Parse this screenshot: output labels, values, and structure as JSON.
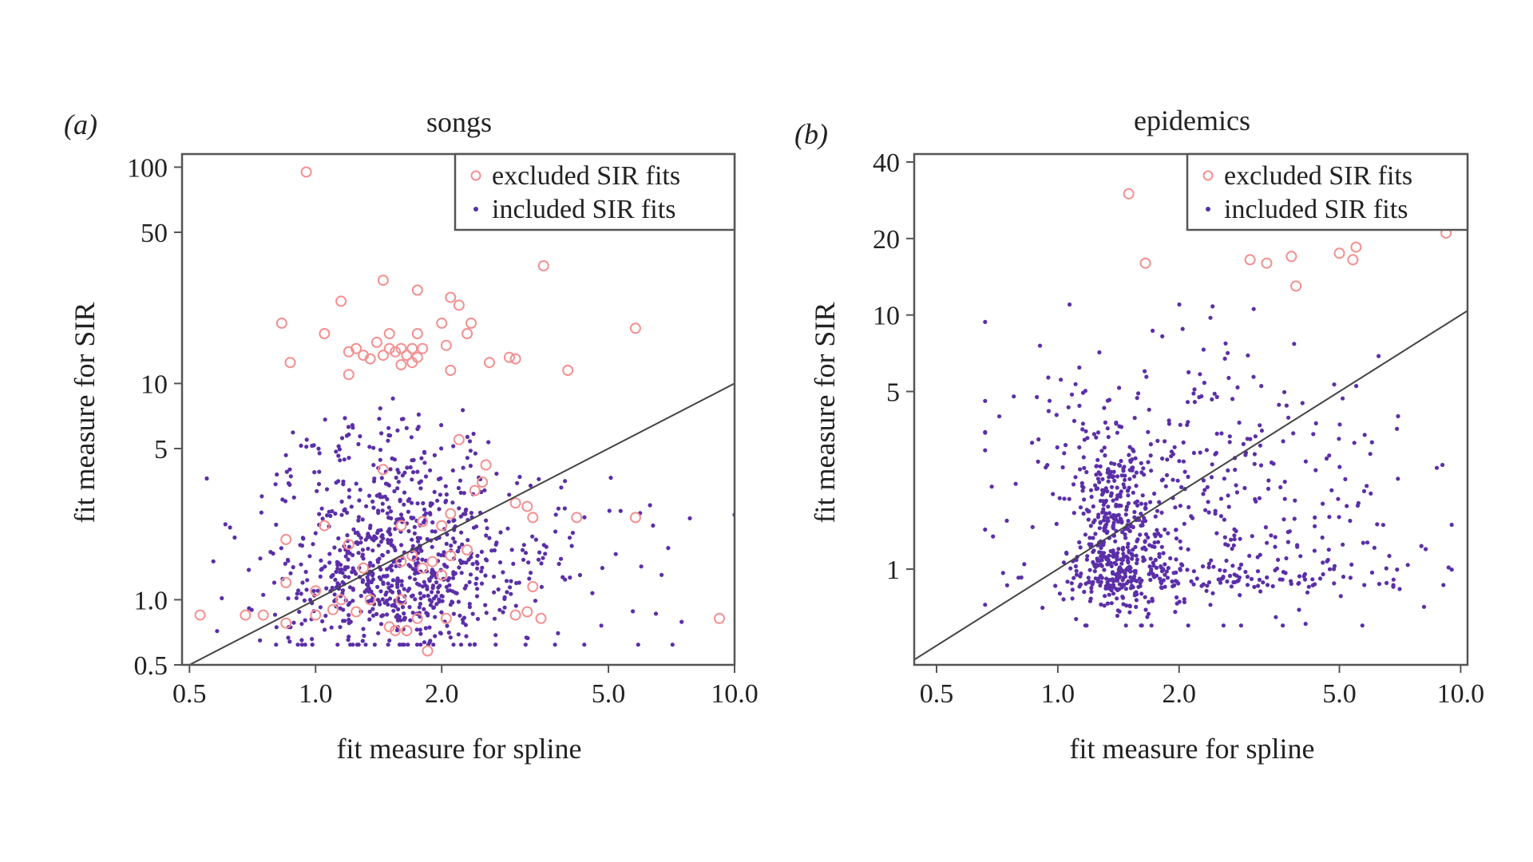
{
  "figure": {
    "colors": {
      "excluded": "#f49090",
      "included": "#5b2fa8",
      "line": "#444444",
      "axis": "#555555",
      "text": "#222222"
    }
  },
  "chart_data": [
    {
      "type": "scatter",
      "panel_label": "(a)",
      "panel_label_letter": "a",
      "title": "songs",
      "xlabel": "fit measure for spline",
      "ylabel": "fit measure for SIR",
      "xscale": "log",
      "yscale": "log",
      "xlim": [
        0.48,
        10.0
      ],
      "ylim": [
        0.5,
        115
      ],
      "xticks": [
        0.5,
        1.0,
        2.0,
        5.0,
        10.0
      ],
      "xtick_labels": [
        "0.5",
        "1.0",
        "2.0",
        "5.0",
        "10.0"
      ],
      "yticks": [
        0.5,
        1.0,
        5,
        10,
        50,
        100
      ],
      "ytick_labels": [
        "0.5",
        "1.0",
        "5",
        "10",
        "50",
        "100"
      ],
      "grid": false,
      "legend": {
        "position": "top-right",
        "entries": [
          {
            "label": "excluded SIR fits",
            "marker": "open-circle",
            "series": "excluded"
          },
          {
            "label": "included SIR fits",
            "marker": "dot",
            "series": "included"
          }
        ]
      },
      "reference_line": {
        "label": "y = x",
        "slope_loglog": 1,
        "intercept": 0
      },
      "series": [
        {
          "name": "excluded SIR fits",
          "marker": "open-circle",
          "points": [
            [
              0.95,
              95
            ],
            [
              3.5,
              35
            ],
            [
              1.45,
              30
            ],
            [
              1.75,
              27
            ],
            [
              2.1,
              25
            ],
            [
              2.2,
              23
            ],
            [
              1.15,
              24
            ],
            [
              0.83,
              19
            ],
            [
              1.05,
              17
            ],
            [
              2.0,
              19
            ],
            [
              2.35,
              19
            ],
            [
              2.3,
              17
            ],
            [
              5.8,
              18
            ],
            [
              1.5,
              17
            ],
            [
              1.75,
              17
            ],
            [
              2.05,
              15
            ],
            [
              1.25,
              14.5
            ],
            [
              1.4,
              15.5
            ],
            [
              1.5,
              14.5
            ],
            [
              1.6,
              14.5
            ],
            [
              1.7,
              14.5
            ],
            [
              1.8,
              14.5
            ],
            [
              1.3,
              13.5
            ],
            [
              1.45,
              13.5
            ],
            [
              1.55,
              14
            ],
            [
              1.65,
              13.5
            ],
            [
              1.75,
              13.2
            ],
            [
              1.2,
              14
            ],
            [
              1.35,
              13
            ],
            [
              1.7,
              12.5
            ],
            [
              1.6,
              12.2
            ],
            [
              0.87,
              12.5
            ],
            [
              2.6,
              12.5
            ],
            [
              2.9,
              13.2
            ],
            [
              3.0,
              13.0
            ],
            [
              2.1,
              11.5
            ],
            [
              1.2,
              11
            ],
            [
              4.0,
              11.5
            ],
            [
              2.2,
              5.5
            ],
            [
              2.55,
              4.2
            ],
            [
              1.45,
              4
            ],
            [
              2.5,
              3.5
            ],
            [
              2.4,
              3.2
            ],
            [
              3.0,
              2.8
            ],
            [
              3.2,
              2.7
            ],
            [
              2.1,
              2.5
            ],
            [
              3.3,
              2.4
            ],
            [
              4.2,
              2.4
            ],
            [
              5.8,
              2.4
            ],
            [
              2.0,
              2.2
            ],
            [
              1.6,
              2.2
            ],
            [
              1.05,
              2.2
            ],
            [
              1.8,
              2.3
            ],
            [
              0.85,
              1.9
            ],
            [
              1.2,
              1.8
            ],
            [
              1.7,
              1.6
            ],
            [
              2.1,
              1.6
            ],
            [
              2.3,
              1.7
            ],
            [
              1.3,
              1.4
            ],
            [
              1.6,
              1.5
            ],
            [
              1.8,
              1.4
            ],
            [
              1.9,
              1.5
            ],
            [
              2.0,
              1.3
            ],
            [
              0.85,
              1.2
            ],
            [
              1.0,
              1.1
            ],
            [
              1.15,
              1.0
            ],
            [
              1.35,
              1.0
            ],
            [
              1.6,
              1.0
            ],
            [
              3.3,
              1.15
            ],
            [
              0.53,
              0.85
            ],
            [
              0.68,
              0.85
            ],
            [
              0.75,
              0.85
            ],
            [
              0.85,
              0.78
            ],
            [
              1.0,
              0.85
            ],
            [
              1.1,
              0.9
            ],
            [
              1.25,
              0.88
            ],
            [
              1.5,
              0.75
            ],
            [
              1.75,
              0.82
            ],
            [
              2.05,
              0.82
            ],
            [
              3.0,
              0.85
            ],
            [
              3.2,
              0.88
            ],
            [
              3.45,
              0.82
            ],
            [
              9.2,
              0.82
            ],
            [
              1.85,
              0.58
            ],
            [
              1.55,
              0.72
            ],
            [
              1.65,
              0.72
            ]
          ]
        },
        {
          "name": "included SIR fits",
          "marker": "dot",
          "n_points_approx": 900,
          "distribution": "dense cloud centred near spline≈1.5, SIR≈1.3 (log-normal scatter), spanning spline 0.55–10, SIR 0.6–10"
        }
      ]
    },
    {
      "type": "scatter",
      "panel_label": "(b)",
      "panel_label_letter": "b",
      "title": "epidemics",
      "xlabel": "fit measure for spline",
      "ylabel": "fit measure for SIR",
      "xscale": "log",
      "yscale": "log",
      "xlim": [
        0.44,
        10.4
      ],
      "ylim": [
        0.42,
        43
      ],
      "xticks": [
        0.5,
        1.0,
        2.0,
        5.0,
        10.0
      ],
      "xtick_labels": [
        "0.5",
        "1.0",
        "2.0",
        "5.0",
        "10.0"
      ],
      "yticks": [
        1,
        5,
        10,
        20,
        40
      ],
      "ytick_labels": [
        "1",
        "5",
        "10",
        "20",
        "40"
      ],
      "grid": false,
      "legend": {
        "position": "top-right",
        "entries": [
          {
            "label": "excluded SIR fits",
            "marker": "open-circle",
            "series": "excluded"
          },
          {
            "label": "included SIR fits",
            "marker": "dot",
            "series": "included"
          }
        ]
      },
      "reference_line": {
        "label": "y = x",
        "slope_loglog": 1,
        "intercept": 0
      },
      "series": [
        {
          "name": "excluded SIR fits",
          "marker": "open-circle",
          "points": [
            [
              1.5,
              30
            ],
            [
              1.65,
              16
            ],
            [
              3.0,
              16.5
            ],
            [
              3.3,
              16
            ],
            [
              3.8,
              17
            ],
            [
              3.9,
              13
            ],
            [
              5.0,
              17.5
            ],
            [
              5.4,
              16.5
            ],
            [
              5.5,
              18.5
            ],
            [
              9.2,
              21
            ]
          ]
        },
        {
          "name": "included SIR fits",
          "marker": "dot",
          "n_points_approx": 950,
          "distribution": "dense cloud centred near spline≈1.4, SIR≈1–2, with broad scatter spanning spline 0.65–9.5, SIR 0.6–11; strong band near SIR≈0.7–0.9"
        }
      ]
    }
  ]
}
